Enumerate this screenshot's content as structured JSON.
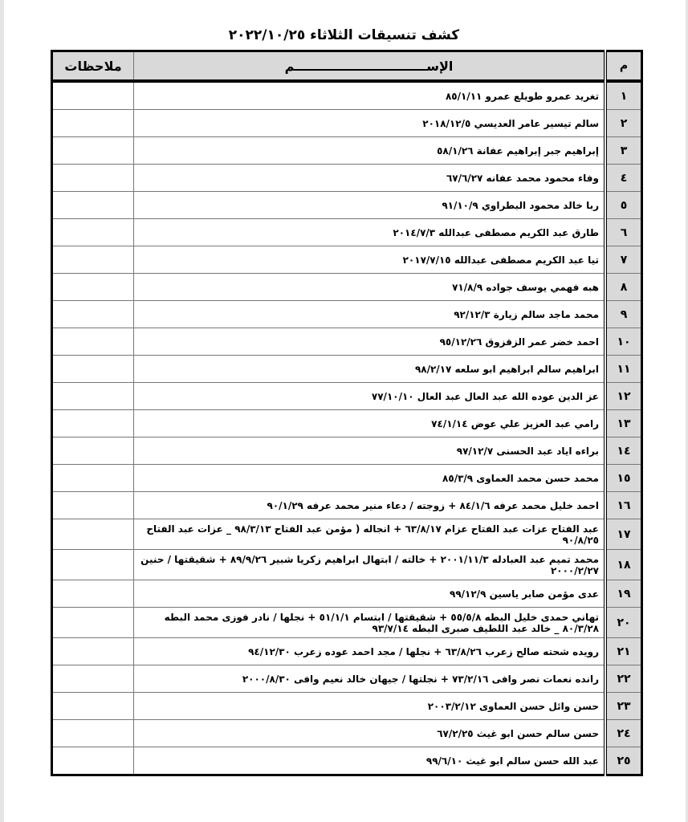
{
  "title": "كشف تنسيقات الثلاثاء  ٢٠٢٢/١٠/٢٥",
  "headers": {
    "num": "م",
    "name": "الإســــــــــــــــــــــــــــــم",
    "notes": "ملاحظات"
  },
  "rows": [
    {
      "num": "١",
      "name": "تغريد عمرو طويلع عمرو ٨٥/١/١١",
      "notes": ""
    },
    {
      "num": "٢",
      "name": "سالم تيسير عامر العديسي ٢٠١٨/١٢/٥",
      "notes": ""
    },
    {
      "num": "٣",
      "name": "إبراهيم جبر إبراهيم عفانة ٥٨/١/٢٦",
      "notes": ""
    },
    {
      "num": "٤",
      "name": "وفاء محمود محمد عفانه ٦٧/٦/٢٧",
      "notes": ""
    },
    {
      "num": "٥",
      "name": "ربا خالد محمود البطراوي ٩١/١٠/٩",
      "notes": ""
    },
    {
      "num": "٦",
      "name": "طارق عبد الكريم مصطفى عبدالله ٢٠١٤/٧/٣",
      "notes": ""
    },
    {
      "num": "٧",
      "name": "تيا عبد الكريم مصطفى عبدالله ٢٠١٧/٧/١٥",
      "notes": ""
    },
    {
      "num": "٨",
      "name": "هبه فهمي يوسف جواده ٧١/٨/٩",
      "notes": ""
    },
    {
      "num": "٩",
      "name": "محمد ماجد سالم زيارة ٩٢/١٢/٣",
      "notes": ""
    },
    {
      "num": "١٠",
      "name": "احمد خضر عمر الزقزوق ٩٥/١٢/٢٦",
      "notes": ""
    },
    {
      "num": "١١",
      "name": "ابراهيم سالم ابراهيم ابو سلعه ٩٨/٢/١٧",
      "notes": ""
    },
    {
      "num": "١٢",
      "name": "عز الدين عوده الله عبد العال عبد العال ٧٧/١٠/١٠",
      "notes": ""
    },
    {
      "num": "١٣",
      "name": "رامي عبد العزيز علي عوض ٧٤/١/١٤",
      "notes": ""
    },
    {
      "num": "١٤",
      "name": "براءه اياد عبد الحسنى ٩٧/١٢/٧",
      "notes": ""
    },
    {
      "num": "١٥",
      "name": "محمد حسن محمد العماوى ٨٥/٣/٩",
      "notes": ""
    },
    {
      "num": "١٦",
      "name": "احمد خليل محمد عرفه ٨٤/١/٦ + زوجته / دعاء منير محمد عرفه ٩٠/١/٢٩",
      "notes": ""
    },
    {
      "num": "١٧",
      "name": "عبد الفتاح عزات عبد الفتاح عزام ٦٣/٨/١٧ + انجاله ( مؤمن عبد الفتاح ٩٨/٣/١٣ _ عزات عبد الفتاح ٩٠/٨/٢٥",
      "notes": ""
    },
    {
      "num": "١٨",
      "name": "محمد تميم عبد العبادله ٢٠٠١/١١/٣ + خالته / ابتهال ابراهيم زكريا شبير ٨٩/٩/٢٦ + شقيقتها / حنين ٢٠٠٠/٢/٢٧",
      "notes": ""
    },
    {
      "num": "١٩",
      "name": "عدى مؤمن صابر ياسين ٩٩/١٢/٩",
      "notes": ""
    },
    {
      "num": "٢٠",
      "name": "تهاني حمدى خليل البطه ٥٥/٥/٨ + شقيقتها / ابتسام ٥١/١/١ + نجلها / نادر فوزى محمد البطه ٨٠/٣/٢٨ _ خالد عبد اللطيف صبرى البطه ٩٣/٧/١٤",
      "notes": ""
    },
    {
      "num": "٢١",
      "name": "رويده شحته صالح زعرب ٦٣/٨/٢٦ + نجلها / مجد احمد عوده زعرب ٩٤/١٢/٣٠",
      "notes": ""
    },
    {
      "num": "٢٢",
      "name": "رانده نعمات نصر وافى ٧٣/٢/١٦ + نجلتها / جيهان خالد نعيم وافى ٢٠٠٠/٨/٣٠",
      "notes": ""
    },
    {
      "num": "٢٣",
      "name": "حسن وائل حسن العماوى ٢٠٠٣/٢/١٢",
      "notes": ""
    },
    {
      "num": "٢٤",
      "name": "حسن سالم حسن ابو غيث ٦٧/٢/٢٥",
      "notes": ""
    },
    {
      "num": "٢٥",
      "name": "عبد الله حسن سالم ابو غيث ٩٩/٦/١٠",
      "notes": ""
    }
  ]
}
